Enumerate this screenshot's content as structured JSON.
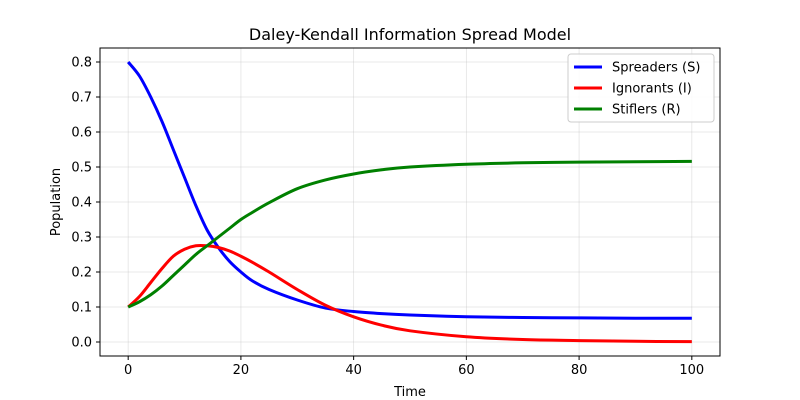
{
  "chart_data": {
    "type": "line",
    "title": "Daley-Kendall Information Spread Model",
    "xlabel": "Time",
    "ylabel": "Population",
    "xlim": [
      -5,
      105
    ],
    "ylim": [
      -0.04,
      0.84
    ],
    "xticks": [
      0,
      20,
      40,
      60,
      80,
      100
    ],
    "yticks": [
      0.0,
      0.1,
      0.2,
      0.3,
      0.4,
      0.5,
      0.6,
      0.7,
      0.8
    ],
    "grid": true,
    "legend_position": "top-right",
    "x": [
      0,
      2,
      4,
      6,
      8,
      10,
      12,
      14,
      16,
      18,
      20,
      22,
      25,
      30,
      35,
      40,
      45,
      50,
      60,
      70,
      80,
      90,
      100
    ],
    "series": [
      {
        "name": "Spreaders (S)",
        "color": "#0000ff",
        "values": [
          0.8,
          0.76,
          0.7,
          0.63,
          0.55,
          0.47,
          0.39,
          0.32,
          0.27,
          0.23,
          0.2,
          0.175,
          0.15,
          0.12,
          0.097,
          0.087,
          0.081,
          0.077,
          0.072,
          0.07,
          0.069,
          0.068,
          0.068
        ]
      },
      {
        "name": "Ignorants (I)",
        "color": "#ff0000",
        "values": [
          0.1,
          0.13,
          0.17,
          0.21,
          0.245,
          0.265,
          0.275,
          0.275,
          0.27,
          0.26,
          0.245,
          0.228,
          0.2,
          0.15,
          0.105,
          0.072,
          0.048,
          0.032,
          0.015,
          0.007,
          0.004,
          0.002,
          0.001
        ]
      },
      {
        "name": "Stiflers (R)",
        "color": "#008000",
        "values": [
          0.1,
          0.115,
          0.135,
          0.16,
          0.19,
          0.22,
          0.25,
          0.275,
          0.3,
          0.325,
          0.35,
          0.37,
          0.398,
          0.438,
          0.463,
          0.48,
          0.492,
          0.5,
          0.508,
          0.512,
          0.514,
          0.515,
          0.516
        ]
      }
    ]
  }
}
